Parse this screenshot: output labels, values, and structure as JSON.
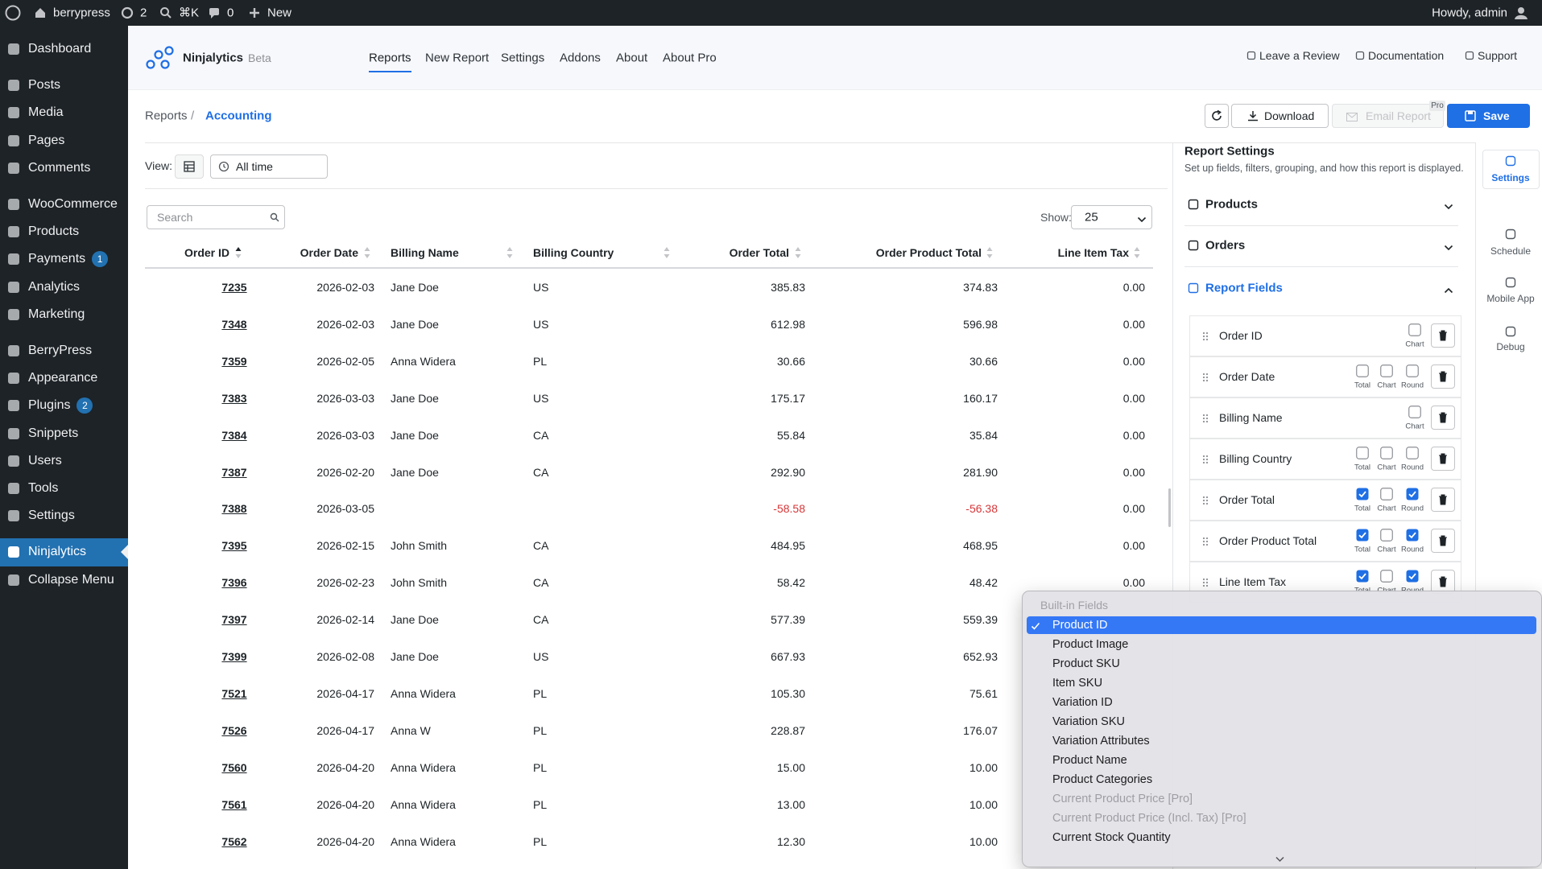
{
  "admin_bar": {
    "site": "berrypress",
    "updates": "2",
    "search": "⌘K",
    "comments": "0",
    "new": "New",
    "howdy": "Howdy, admin"
  },
  "sidebar": {
    "items": [
      {
        "label": "Dashboard"
      },
      {
        "label": "Posts"
      },
      {
        "label": "Media"
      },
      {
        "label": "Pages"
      },
      {
        "label": "Comments"
      },
      {
        "label": "WooCommerce"
      },
      {
        "label": "Products"
      },
      {
        "label": "Payments",
        "badge": "1"
      },
      {
        "label": "Analytics"
      },
      {
        "label": "Marketing"
      },
      {
        "label": "BerryPress"
      },
      {
        "label": "Appearance"
      },
      {
        "label": "Plugins",
        "badge": "2"
      },
      {
        "label": "Snippets"
      },
      {
        "label": "Users"
      },
      {
        "label": "Tools"
      },
      {
        "label": "Settings"
      },
      {
        "label": "Ninjalytics",
        "active": true
      },
      {
        "label": "Collapse Menu"
      }
    ]
  },
  "header": {
    "brand": "Ninjalytics",
    "badge": "Beta",
    "nav": [
      {
        "label": "Reports",
        "active": true
      },
      {
        "label": "New Report"
      },
      {
        "label": "Settings"
      },
      {
        "label": "Addons"
      },
      {
        "label": "About"
      },
      {
        "label": "About Pro"
      }
    ],
    "links": [
      "Leave a Review",
      "Documentation",
      "Support"
    ]
  },
  "breadcrumb": {
    "parent": "Reports",
    "separator": "/",
    "current": "Accounting"
  },
  "toolbar": {
    "download": "Download",
    "email": "Email Report",
    "pro": "Pro",
    "save": "Save"
  },
  "view": {
    "label": "View:",
    "range": "All time"
  },
  "table": {
    "search": "Search",
    "show_label": "Show:",
    "show_value": "25",
    "columns": [
      {
        "label": "Order ID",
        "sorted": "asc"
      },
      {
        "label": "Order Date"
      },
      {
        "label": "Billing Name"
      },
      {
        "label": "Billing Country"
      },
      {
        "label": "Order Total"
      },
      {
        "label": "Order Product Total"
      },
      {
        "label": "Line Item Tax"
      }
    ],
    "rows": [
      [
        "7235",
        "2026-02-03",
        "Jane Doe",
        "US",
        "385.83",
        "374.83",
        "0.00"
      ],
      [
        "7348",
        "2026-02-03",
        "Jane Doe",
        "US",
        "612.98",
        "596.98",
        "0.00"
      ],
      [
        "7359",
        "2026-02-05",
        "Anna Widera",
        "PL",
        "30.66",
        "30.66",
        "0.00"
      ],
      [
        "7383",
        "2026-03-03",
        "Jane Doe",
        "US",
        "175.17",
        "160.17",
        "0.00"
      ],
      [
        "7384",
        "2026-03-03",
        "Jane Doe",
        "CA",
        "55.84",
        "35.84",
        "0.00"
      ],
      [
        "7387",
        "2026-02-20",
        "Jane Doe",
        "CA",
        "292.90",
        "281.90",
        "0.00"
      ],
      [
        "7388",
        "2026-03-05",
        null,
        null,
        "-58.58",
        "-56.38",
        "0.00"
      ],
      [
        "7395",
        "2026-02-15",
        "John Smith",
        "CA",
        "484.95",
        "468.95",
        "0.00"
      ],
      [
        "7396",
        "2026-02-23",
        "John Smith",
        "CA",
        "58.42",
        "48.42",
        "0.00"
      ],
      [
        "7397",
        "2026-02-14",
        "Jane Doe",
        "CA",
        "577.39",
        "559.39",
        null
      ],
      [
        "7399",
        "2026-02-08",
        "Jane Doe",
        "US",
        "667.93",
        "652.93",
        null
      ],
      [
        "7521",
        "2026-04-17",
        "Anna Widera",
        "PL",
        "105.30",
        "75.61",
        null
      ],
      [
        "7526",
        "2026-04-17",
        "Anna W",
        "PL",
        "228.87",
        "176.07",
        null
      ],
      [
        "7560",
        "2026-04-20",
        "Anna Widera",
        "PL",
        "15.00",
        "10.00",
        null
      ],
      [
        "7561",
        "2026-04-20",
        "Anna Widera",
        "PL",
        "13.00",
        "10.00",
        null
      ],
      [
        "7562",
        "2026-04-20",
        "Anna Widera",
        "PL",
        "12.30",
        "10.00",
        null
      ]
    ]
  },
  "settings": {
    "title": "Report Settings",
    "subtitle": "Set up fields, filters, grouping, and how this report is displayed.",
    "sections": [
      {
        "label": "Products"
      },
      {
        "label": "Orders"
      },
      {
        "label": "Report Fields",
        "open": true
      }
    ],
    "fields": [
      {
        "name": "Order ID",
        "options": [
          {
            "label": "Chart",
            "checked": false
          }
        ]
      },
      {
        "name": "Order Date",
        "options": [
          {
            "label": "Total",
            "checked": false
          },
          {
            "label": "Chart",
            "checked": false
          },
          {
            "label": "Round",
            "checked": false
          }
        ]
      },
      {
        "name": "Billing Name",
        "options": [
          {
            "label": "Chart",
            "checked": false
          }
        ]
      },
      {
        "name": "Billing Country",
        "options": [
          {
            "label": "Total",
            "checked": false
          },
          {
            "label": "Chart",
            "checked": false
          },
          {
            "label": "Round",
            "checked": false
          }
        ]
      },
      {
        "name": "Order Total",
        "options": [
          {
            "label": "Total",
            "checked": true
          },
          {
            "label": "Chart",
            "checked": false
          },
          {
            "label": "Round",
            "checked": true
          }
        ]
      },
      {
        "name": "Order Product Total",
        "options": [
          {
            "label": "Total",
            "checked": true
          },
          {
            "label": "Chart",
            "checked": false
          },
          {
            "label": "Round",
            "checked": true
          }
        ]
      },
      {
        "name": "Line Item Tax",
        "options": [
          {
            "label": "Total",
            "checked": true
          },
          {
            "label": "Chart",
            "checked": false
          },
          {
            "label": "Round",
            "checked": true
          }
        ]
      }
    ],
    "tabs": [
      {
        "label": "Settings",
        "active": true
      },
      {
        "label": "Schedule"
      },
      {
        "label": "Mobile App"
      },
      {
        "label": "Debug"
      }
    ]
  },
  "dropdown": {
    "group": "Built-in Fields",
    "items": [
      {
        "label": "Product ID",
        "selected": true
      },
      {
        "label": "Product Image"
      },
      {
        "label": "Product SKU"
      },
      {
        "label": "Item SKU"
      },
      {
        "label": "Variation ID"
      },
      {
        "label": "Variation SKU"
      },
      {
        "label": "Variation Attributes"
      },
      {
        "label": "Product Name"
      },
      {
        "label": "Product Categories"
      },
      {
        "label": "Current Product Price [Pro]",
        "disabled": true
      },
      {
        "label": "Current Product Price (Incl. Tax) [Pro]",
        "disabled": true
      },
      {
        "label": "Current Stock Quantity"
      }
    ]
  }
}
